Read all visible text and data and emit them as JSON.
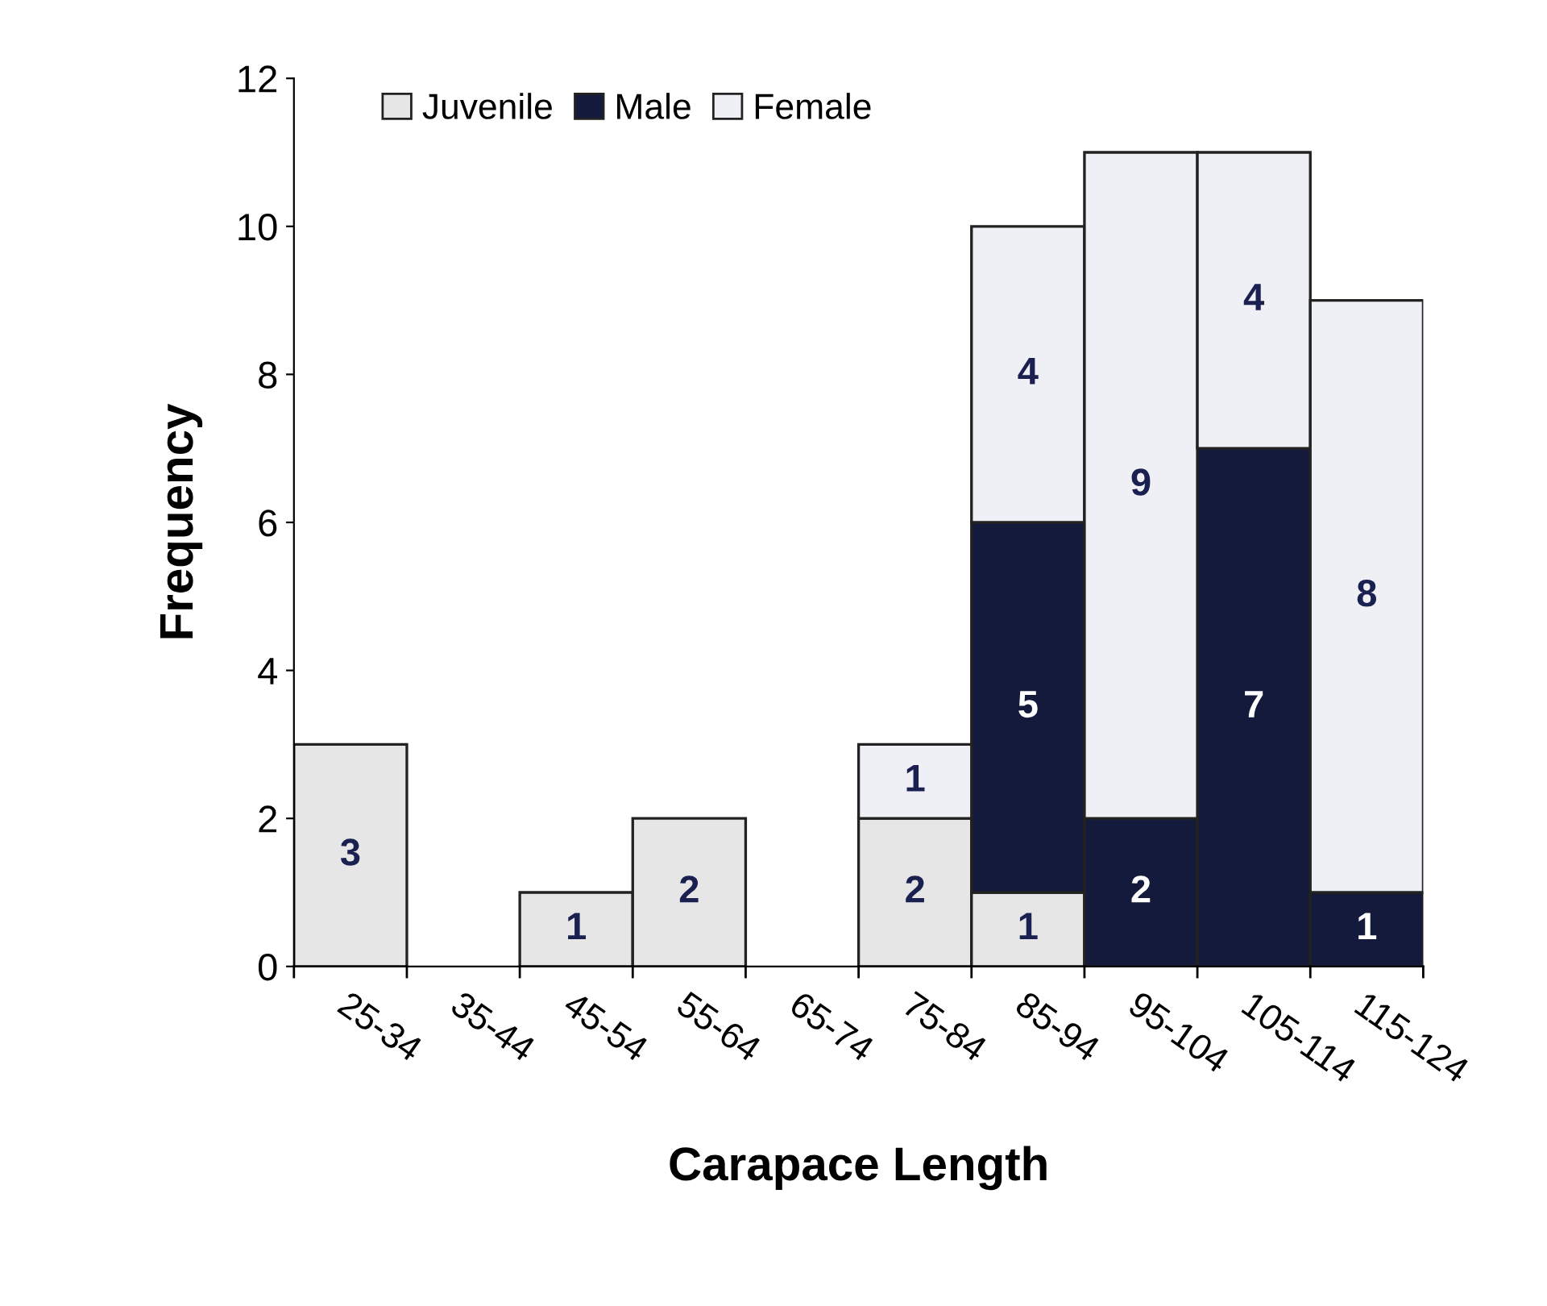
{
  "chart_data": {
    "type": "bar",
    "stacked": true,
    "xlabel": "Carapace Length",
    "ylabel": "Frequency",
    "categories": [
      "25-34",
      "35-44",
      "45-54",
      "55-64",
      "65-74",
      "75-84",
      "85-94",
      "95-104",
      "105-114",
      "115-124"
    ],
    "series": [
      {
        "name": "Juvenile",
        "color": "#e6e6e6",
        "values": [
          3,
          null,
          1,
          2,
          null,
          2,
          1,
          null,
          null,
          null
        ]
      },
      {
        "name": "Male",
        "color": "#141a3c",
        "values": [
          null,
          null,
          null,
          null,
          null,
          null,
          5,
          2,
          7,
          1
        ]
      },
      {
        "name": "Female",
        "color": "#eef0f5",
        "values": [
          null,
          null,
          null,
          null,
          null,
          1,
          4,
          9,
          4,
          8
        ]
      }
    ],
    "ylim": [
      0,
      12
    ],
    "yticks": [
      0,
      2,
      4,
      6,
      8,
      10,
      12
    ],
    "data_labels": true,
    "legend": "top left",
    "grid": false
  }
}
